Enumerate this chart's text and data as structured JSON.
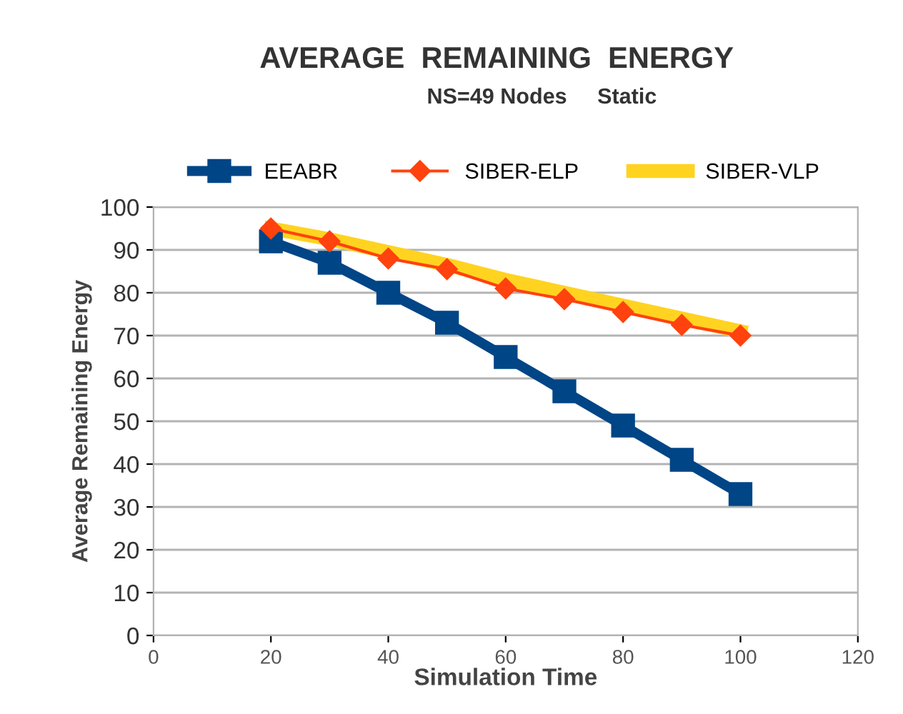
{
  "chart_data": {
    "type": "line",
    "title": "AVERAGE  REMAINING  ENERGY",
    "subtitle": "NS=49 Nodes     Static",
    "xlabel": "Simulation Time",
    "ylabel": "Average Remaining Energy",
    "x": [
      20,
      30,
      40,
      50,
      60,
      70,
      80,
      90,
      100
    ],
    "series": [
      {
        "name": "EEABR",
        "color": "#004586",
        "marker": "square",
        "values": [
          92,
          87,
          80,
          73,
          65,
          57,
          49,
          41,
          33
        ]
      },
      {
        "name": "SIBER-ELP",
        "color": "#ff420e",
        "marker": "diamond",
        "values": [
          95,
          92,
          88,
          85.5,
          81,
          78.5,
          75.5,
          72.5,
          70
        ]
      },
      {
        "name": "SIBER-VLP",
        "color": "#ffd320",
        "marker": "none",
        "values": [
          95,
          92.5,
          89.5,
          86.5,
          83,
          80,
          77,
          74,
          71
        ]
      }
    ],
    "xlim": [
      0,
      120
    ],
    "xticks": [
      0,
      20,
      40,
      60,
      80,
      100,
      120
    ],
    "ylim": [
      0,
      100
    ],
    "yticks": [
      0,
      10,
      20,
      30,
      40,
      50,
      60,
      70,
      80,
      90,
      100
    ],
    "grid": "y",
    "legend": "top"
  }
}
